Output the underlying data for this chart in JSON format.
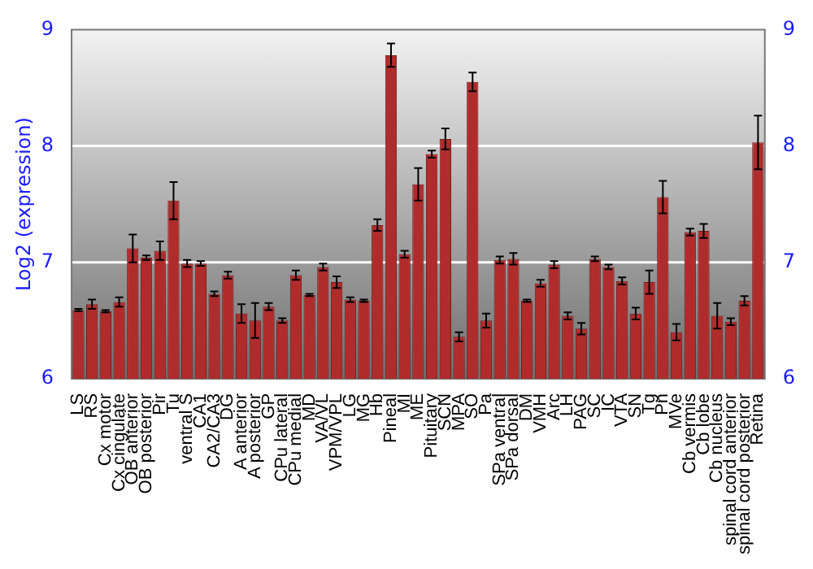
{
  "chart_data": {
    "type": "bar",
    "ylabel": "Log2 (expression)",
    "categories": [
      "LS",
      "RS",
      "Cx motor",
      "Cx cingulate",
      "OB anterior",
      "OB posterior",
      "Pir",
      "Tu",
      "ventral S",
      "CA1",
      "CA2/CA3",
      "DG",
      "A anterior",
      "A posterior",
      "GP",
      "CPu lateral",
      "CPu medial",
      "MD",
      "VA/VL",
      "VPM/VPL",
      "LG",
      "MG",
      "Hb",
      "Pineal",
      "MI",
      "ME",
      "Pituitary",
      "SCN",
      "MPA",
      "SO",
      "Pa",
      "SPa ventral",
      "SPa dorsal",
      "DM",
      "VMH",
      "Arc",
      "LH",
      "PAG",
      "SC",
      "IC",
      "VTA",
      "SN",
      "Tg",
      "Pn",
      "MVe",
      "Cb vermis",
      "Cb lobe",
      "Cb nucleus",
      "spinal cord anterior",
      "spinal cord posterior",
      "Retina"
    ],
    "values": [
      6.59,
      6.64,
      6.58,
      6.66,
      7.12,
      7.04,
      7.1,
      7.53,
      6.99,
      6.99,
      6.73,
      6.89,
      6.56,
      6.5,
      6.62,
      6.5,
      6.89,
      6.72,
      6.96,
      6.83,
      6.68,
      6.67,
      7.32,
      8.78,
      7.07,
      7.67,
      7.93,
      8.06,
      6.36,
      8.55,
      6.5,
      7.02,
      7.03,
      6.67,
      6.82,
      6.98,
      6.54,
      6.43,
      7.03,
      6.96,
      6.84,
      6.56,
      6.83,
      7.56,
      6.4,
      7.26,
      7.27,
      6.54,
      6.49,
      6.67,
      8.03
    ],
    "errors": [
      0.01,
      0.04,
      0.01,
      0.04,
      0.12,
      0.02,
      0.08,
      0.16,
      0.03,
      0.02,
      0.02,
      0.03,
      0.08,
      0.15,
      0.03,
      0.02,
      0.04,
      0.01,
      0.03,
      0.05,
      0.02,
      0.01,
      0.05,
      0.1,
      0.03,
      0.14,
      0.03,
      0.09,
      0.04,
      0.08,
      0.06,
      0.03,
      0.05,
      0.01,
      0.03,
      0.03,
      0.03,
      0.05,
      0.02,
      0.02,
      0.03,
      0.05,
      0.1,
      0.14,
      0.07,
      0.03,
      0.06,
      0.11,
      0.03,
      0.04,
      0.23
    ],
    "color": "#b02c2c",
    "ylim": [
      6,
      9
    ],
    "yticks": [
      6,
      7,
      8,
      9
    ],
    "y2lim": [
      6,
      9
    ],
    "y2ticks": [
      6,
      7,
      8,
      9
    ],
    "grid": "y"
  }
}
